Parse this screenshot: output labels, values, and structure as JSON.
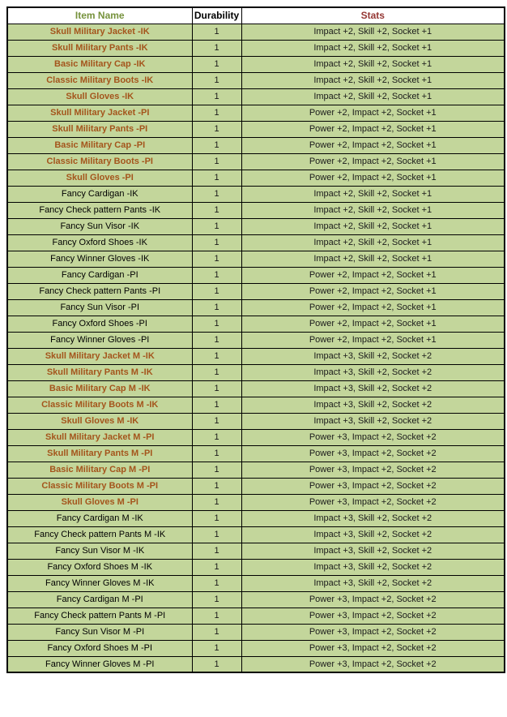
{
  "colors": {
    "header-item-name": "#76923c",
    "header-durability": "#000000",
    "header-stats": "#953734",
    "military-name": "#a4551c",
    "fancy-name": "#000000",
    "row-bg": "#c3d69b",
    "border": "#000000",
    "page-bg": "#ffffff"
  },
  "table": {
    "headers": {
      "item_name": "Item Name",
      "durability": "Durability",
      "stats": "Stats"
    },
    "rows": [
      {
        "name": "Skull Military Jacket -IK",
        "type": "military",
        "durability": "1",
        "stats": "Impact +2, Skill +2, Socket +1"
      },
      {
        "name": "Skull Military Pants -IK",
        "type": "military",
        "durability": "1",
        "stats": "Impact +2, Skill +2, Socket +1"
      },
      {
        "name": "Basic Military Cap -IK",
        "type": "military",
        "durability": "1",
        "stats": "Impact +2, Skill +2, Socket +1"
      },
      {
        "name": "Classic Military Boots -IK",
        "type": "military",
        "durability": "1",
        "stats": "Impact +2, Skill +2, Socket +1"
      },
      {
        "name": "Skull Gloves -IK",
        "type": "military",
        "durability": "1",
        "stats": "Impact +2, Skill +2, Socket +1"
      },
      {
        "name": "Skull Military Jacket -PI",
        "type": "military",
        "durability": "1",
        "stats": "Power +2, Impact +2, Socket +1"
      },
      {
        "name": "Skull Military Pants -PI",
        "type": "military",
        "durability": "1",
        "stats": "Power +2, Impact +2, Socket +1"
      },
      {
        "name": "Basic Military Cap -PI",
        "type": "military",
        "durability": "1",
        "stats": "Power +2, Impact +2, Socket +1"
      },
      {
        "name": "Classic Military Boots -PI",
        "type": "military",
        "durability": "1",
        "stats": "Power +2, Impact +2, Socket +1"
      },
      {
        "name": "Skull Gloves -PI",
        "type": "military",
        "durability": "1",
        "stats": "Power +2, Impact +2, Socket +1"
      },
      {
        "name": "Fancy Cardigan -IK",
        "type": "fancy",
        "durability": "1",
        "stats": "Impact +2, Skill +2, Socket +1"
      },
      {
        "name": "Fancy Check pattern Pants -IK",
        "type": "fancy",
        "durability": "1",
        "stats": "Impact +2, Skill +2, Socket +1"
      },
      {
        "name": "Fancy Sun Visor -IK",
        "type": "fancy",
        "durability": "1",
        "stats": "Impact +2, Skill +2, Socket +1"
      },
      {
        "name": "Fancy Oxford Shoes -IK",
        "type": "fancy",
        "durability": "1",
        "stats": "Impact +2, Skill +2, Socket +1"
      },
      {
        "name": "Fancy Winner Gloves -IK",
        "type": "fancy",
        "durability": "1",
        "stats": "Impact +2, Skill +2, Socket +1"
      },
      {
        "name": "Fancy Cardigan -PI",
        "type": "fancy",
        "durability": "1",
        "stats": "Power +2, Impact +2, Socket +1"
      },
      {
        "name": "Fancy Check pattern Pants -PI",
        "type": "fancy",
        "durability": "1",
        "stats": "Power +2, Impact +2, Socket +1"
      },
      {
        "name": "Fancy Sun Visor -PI",
        "type": "fancy",
        "durability": "1",
        "stats": "Power +2, Impact +2, Socket +1"
      },
      {
        "name": "Fancy Oxford Shoes -PI",
        "type": "fancy",
        "durability": "1",
        "stats": "Power +2, Impact +2, Socket +1"
      },
      {
        "name": "Fancy Winner Gloves -PI",
        "type": "fancy",
        "durability": "1",
        "stats": "Power +2, Impact +2, Socket +1"
      },
      {
        "name": "Skull Military Jacket M -IK",
        "type": "military",
        "durability": "1",
        "stats": "Impact +3, Skill +2, Socket +2"
      },
      {
        "name": "Skull Military Pants M -IK",
        "type": "military",
        "durability": "1",
        "stats": "Impact +3, Skill +2, Socket +2"
      },
      {
        "name": "Basic Military Cap M -IK",
        "type": "military",
        "durability": "1",
        "stats": "Impact +3, Skill +2, Socket +2"
      },
      {
        "name": "Classic Military Boots M -IK",
        "type": "military",
        "durability": "1",
        "stats": "Impact +3, Skill +2, Socket +2"
      },
      {
        "name": "Skull Gloves M -IK",
        "type": "military",
        "durability": "1",
        "stats": "Impact +3, Skill +2, Socket +2"
      },
      {
        "name": "Skull Military Jacket M -PI",
        "type": "military",
        "durability": "1",
        "stats": "Power +3, Impact +2, Socket +2"
      },
      {
        "name": "Skull Military Pants M -PI",
        "type": "military",
        "durability": "1",
        "stats": "Power +3, Impact +2, Socket +2"
      },
      {
        "name": "Basic Military Cap M -PI",
        "type": "military",
        "durability": "1",
        "stats": "Power +3, Impact +2, Socket +2"
      },
      {
        "name": "Classic Military Boots M -PI",
        "type": "military",
        "durability": "1",
        "stats": "Power +3, Impact +2, Socket +2"
      },
      {
        "name": "Skull Gloves M -PI",
        "type": "military",
        "durability": "1",
        "stats": "Power +3, Impact +2, Socket +2"
      },
      {
        "name": "Fancy Cardigan M -IK",
        "type": "fancy",
        "durability": "1",
        "stats": "Impact +3, Skill +2, Socket +2"
      },
      {
        "name": "Fancy Check pattern Pants M -IK",
        "type": "fancy",
        "durability": "1",
        "stats": "Impact +3, Skill +2, Socket +2"
      },
      {
        "name": "Fancy Sun Visor M -IK",
        "type": "fancy",
        "durability": "1",
        "stats": "Impact +3, Skill +2, Socket +2"
      },
      {
        "name": "Fancy Oxford Shoes M -IK",
        "type": "fancy",
        "durability": "1",
        "stats": "Impact +3, Skill +2, Socket +2"
      },
      {
        "name": "Fancy Winner Gloves M -IK",
        "type": "fancy",
        "durability": "1",
        "stats": "Impact +3, Skill +2, Socket +2"
      },
      {
        "name": "Fancy Cardigan M -PI",
        "type": "fancy",
        "durability": "1",
        "stats": "Power +3, Impact +2, Socket +2"
      },
      {
        "name": "Fancy Check pattern Pants M -PI",
        "type": "fancy",
        "durability": "1",
        "stats": "Power +3, Impact +2, Socket +2"
      },
      {
        "name": "Fancy Sun Visor M -PI",
        "type": "fancy",
        "durability": "1",
        "stats": "Power +3, Impact +2, Socket +2"
      },
      {
        "name": "Fancy Oxford Shoes M -PI",
        "type": "fancy",
        "durability": "1",
        "stats": "Power +3, Impact +2, Socket +2"
      },
      {
        "name": "Fancy Winner Gloves M -PI",
        "type": "fancy",
        "durability": "1",
        "stats": "Power +3, Impact +2, Socket +2"
      }
    ]
  }
}
